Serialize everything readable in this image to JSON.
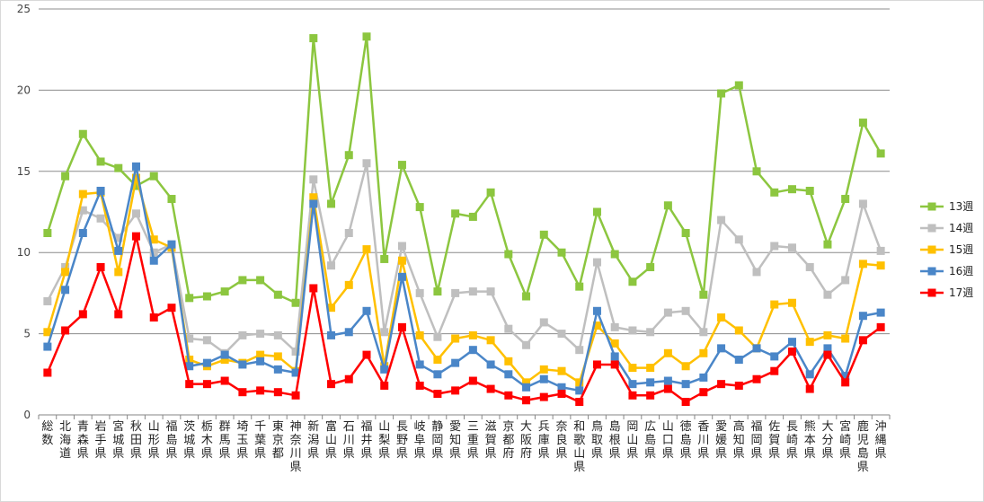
{
  "chart_data": {
    "type": "line",
    "ylim": [
      0,
      25
    ],
    "yticks": [
      0,
      5,
      10,
      15,
      20,
      25
    ],
    "grid": "horizontal",
    "legend_position": "right",
    "categories": [
      "総数",
      "北海道",
      "青森県",
      "岩手県",
      "宮城県",
      "秋田県",
      "山形県",
      "福島県",
      "茨城県",
      "栃木県",
      "群馬県",
      "埼玉県",
      "千葉県",
      "東京都",
      "神奈川県",
      "新潟県",
      "富山県",
      "石川県",
      "福井県",
      "山梨県",
      "長野県",
      "岐阜県",
      "静岡県",
      "愛知県",
      "三重県",
      "滋賀県",
      "京都府",
      "大阪府",
      "兵庫県",
      "奈良県",
      "和歌山県",
      "鳥取県",
      "島根県",
      "岡山県",
      "広島県",
      "山口県",
      "徳島県",
      "香川県",
      "愛媛県",
      "高知県",
      "福岡県",
      "佐賀県",
      "長崎県",
      "熊本県",
      "大分県",
      "宮崎県",
      "鹿児島県",
      "沖縄県"
    ],
    "series": [
      {
        "name": "13週",
        "color": "#8cc63f",
        "values": [
          11.2,
          14.7,
          17.3,
          15.6,
          15.2,
          14.1,
          14.7,
          13.3,
          7.2,
          7.3,
          7.6,
          8.3,
          8.3,
          7.4,
          6.9,
          23.2,
          13.0,
          16.0,
          23.3,
          9.6,
          15.4,
          12.8,
          7.6,
          12.4,
          12.2,
          13.7,
          9.9,
          7.3,
          11.1,
          10.0,
          7.9,
          12.5,
          9.9,
          8.2,
          9.1,
          12.9,
          11.2,
          7.4,
          19.8,
          20.3,
          15.0,
          13.7,
          13.9,
          13.8,
          10.5,
          13.3,
          18.0,
          16.1
        ]
      },
      {
        "name": "14週",
        "color": "#bfbfbf",
        "values": [
          7.0,
          9.1,
          12.6,
          12.1,
          10.9,
          12.4,
          10.0,
          10.5,
          4.7,
          4.6,
          3.8,
          4.9,
          5.0,
          4.9,
          3.9,
          14.5,
          9.2,
          11.2,
          15.5,
          5.1,
          10.4,
          7.5,
          4.8,
          7.5,
          7.6,
          7.6,
          5.3,
          4.3,
          5.7,
          5.0,
          4.0,
          9.4,
          5.4,
          5.2,
          5.1,
          6.3,
          6.4,
          5.1,
          12.0,
          10.8,
          8.8,
          10.4,
          10.3,
          9.1,
          7.4,
          8.3,
          13.0,
          10.1
        ]
      },
      {
        "name": "15週",
        "color": "#ffc000",
        "values": [
          5.1,
          8.8,
          13.6,
          13.7,
          8.8,
          14.6,
          10.8,
          10.3,
          3.4,
          3.0,
          3.4,
          3.2,
          3.7,
          3.6,
          2.7,
          13.4,
          6.6,
          8.0,
          10.2,
          3.0,
          9.5,
          4.9,
          3.4,
          4.7,
          4.9,
          4.6,
          3.3,
          2.0,
          2.8,
          2.7,
          2.0,
          5.5,
          4.4,
          2.9,
          2.9,
          3.8,
          3.0,
          3.8,
          6.0,
          5.2,
          4.1,
          6.8,
          6.9,
          4.5,
          4.9,
          4.7,
          9.3,
          9.2
        ]
      },
      {
        "name": "16週",
        "color": "#4a86c8",
        "values": [
          4.2,
          7.7,
          11.2,
          13.8,
          10.1,
          15.3,
          9.5,
          10.5,
          3.0,
          3.2,
          3.7,
          3.1,
          3.3,
          2.8,
          2.6,
          13.0,
          4.9,
          5.1,
          6.4,
          2.8,
          8.5,
          3.1,
          2.5,
          3.2,
          4.0,
          3.1,
          2.5,
          1.7,
          2.2,
          1.7,
          1.5,
          6.4,
          3.6,
          1.9,
          2.0,
          2.1,
          1.9,
          2.3,
          4.1,
          3.4,
          4.1,
          3.6,
          4.5,
          2.5,
          4.1,
          2.4,
          6.1,
          6.3
        ]
      },
      {
        "name": "17週",
        "color": "#ff0000",
        "values": [
          2.6,
          5.2,
          6.2,
          9.1,
          6.2,
          11.0,
          6.0,
          6.6,
          1.9,
          1.9,
          2.1,
          1.4,
          1.5,
          1.4,
          1.2,
          7.8,
          1.9,
          2.2,
          3.7,
          1.8,
          5.4,
          1.8,
          1.3,
          1.5,
          2.1,
          1.6,
          1.2,
          0.9,
          1.1,
          1.3,
          0.8,
          3.1,
          3.1,
          1.2,
          1.2,
          1.6,
          0.8,
          1.4,
          1.9,
          1.8,
          2.2,
          2.7,
          3.9,
          1.6,
          3.7,
          2.0,
          4.6,
          5.4
        ]
      }
    ]
  }
}
